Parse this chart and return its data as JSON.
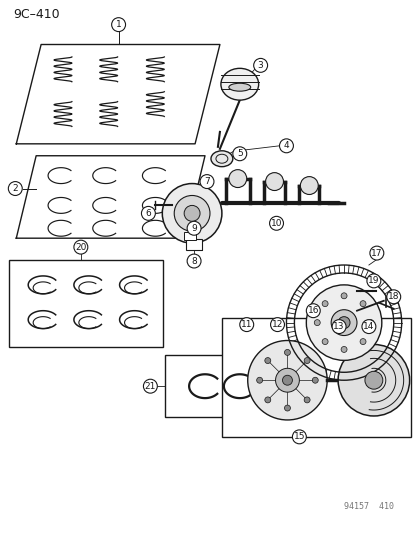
{
  "title": "9C–410",
  "background_color": "#ffffff",
  "line_color": "#1a1a1a",
  "watermark": "94157  410",
  "fig_width": 4.14,
  "fig_height": 5.33,
  "dpi": 100
}
